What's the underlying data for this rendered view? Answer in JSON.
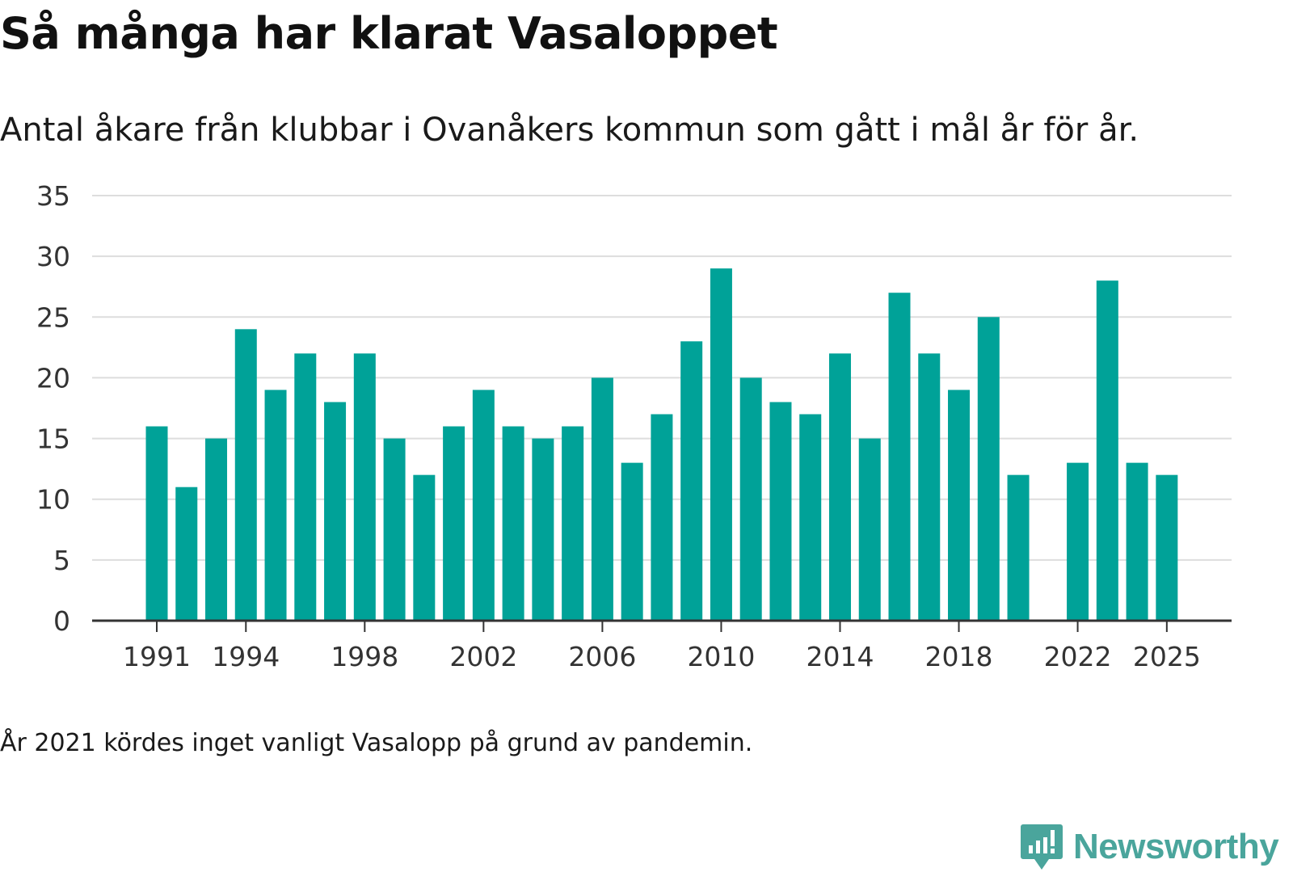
{
  "header": {
    "title": "Så många har klarat Vasaloppet",
    "subtitle": "Antal åkare från klubbar i Ovanåkers kommun som gått i mål år för år."
  },
  "footer": {
    "note": "År 2021 kördes inget vanligt Vasalopp på grund av pandemin.",
    "brand": "Newsworthy",
    "brand_icon": "newsworthy-logo-icon"
  },
  "colors": {
    "bar": "#00a298",
    "grid": "#dddddd",
    "axis": "#333333",
    "brand": "#4aa59c"
  },
  "chart_data": {
    "type": "bar",
    "title": "Så många har klarat Vasaloppet",
    "subtitle": "Antal åkare från klubbar i Ovanåkers kommun som gått i mål år för år.",
    "xlabel": "",
    "ylabel": "",
    "ylim": [
      0,
      35
    ],
    "yticks": [
      0,
      5,
      10,
      15,
      20,
      25,
      30,
      35
    ],
    "grid": true,
    "legend": "none",
    "x_tick_labels": [
      1991,
      1994,
      1998,
      2002,
      2006,
      2010,
      2014,
      2018,
      2022,
      2025
    ],
    "categories": [
      1991,
      1992,
      1993,
      1994,
      1995,
      1996,
      1997,
      1998,
      1999,
      2000,
      2001,
      2002,
      2003,
      2004,
      2005,
      2006,
      2007,
      2008,
      2009,
      2010,
      2011,
      2012,
      2013,
      2014,
      2015,
      2016,
      2017,
      2018,
      2019,
      2020,
      2021,
      2022,
      2023,
      2024,
      2025
    ],
    "values": [
      16,
      11,
      15,
      24,
      19,
      22,
      18,
      22,
      15,
      12,
      16,
      19,
      16,
      15,
      16,
      20,
      13,
      17,
      23,
      29,
      20,
      18,
      17,
      22,
      15,
      27,
      22,
      19,
      25,
      12,
      null,
      13,
      28,
      13,
      12
    ]
  }
}
